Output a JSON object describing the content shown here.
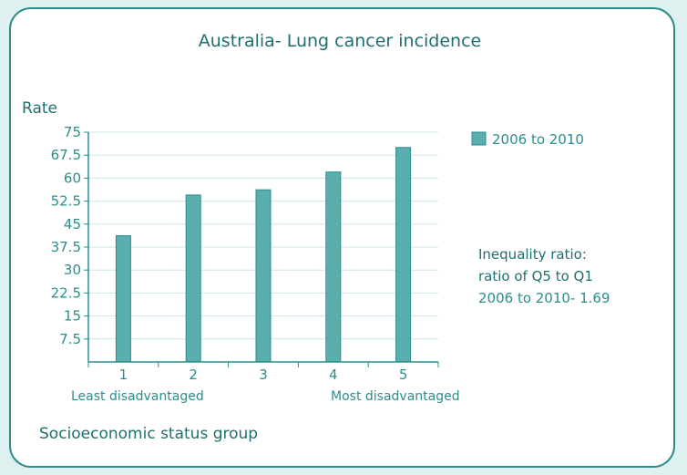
{
  "chart_data": {
    "type": "bar",
    "title": "Australia- Lung cancer incidence",
    "ylabel": "Rate",
    "xlabel": "Socioeconomic status group",
    "categories": [
      "1",
      "2",
      "3",
      "4",
      "5"
    ],
    "category_notes": {
      "first": "Least disadvantaged",
      "last": "Most disadvantaged"
    },
    "series": [
      {
        "name": "2006 to 2010",
        "values": [
          41.2,
          54.5,
          56.2,
          62.0,
          70.0
        ]
      }
    ],
    "ylim": [
      0,
      75
    ],
    "yticks": [
      "75",
      "67.5",
      "60",
      "52.5",
      "45",
      "37.5",
      "30",
      "22.5",
      "15",
      "7.5"
    ],
    "grid": true,
    "legend_position": "top-right",
    "bar_color": "#5aafae",
    "annotation": {
      "line1": "Inequality ratio:",
      "line2": "ratio of Q5 to Q1",
      "line3": "2006 to 2010- 1.69"
    }
  }
}
